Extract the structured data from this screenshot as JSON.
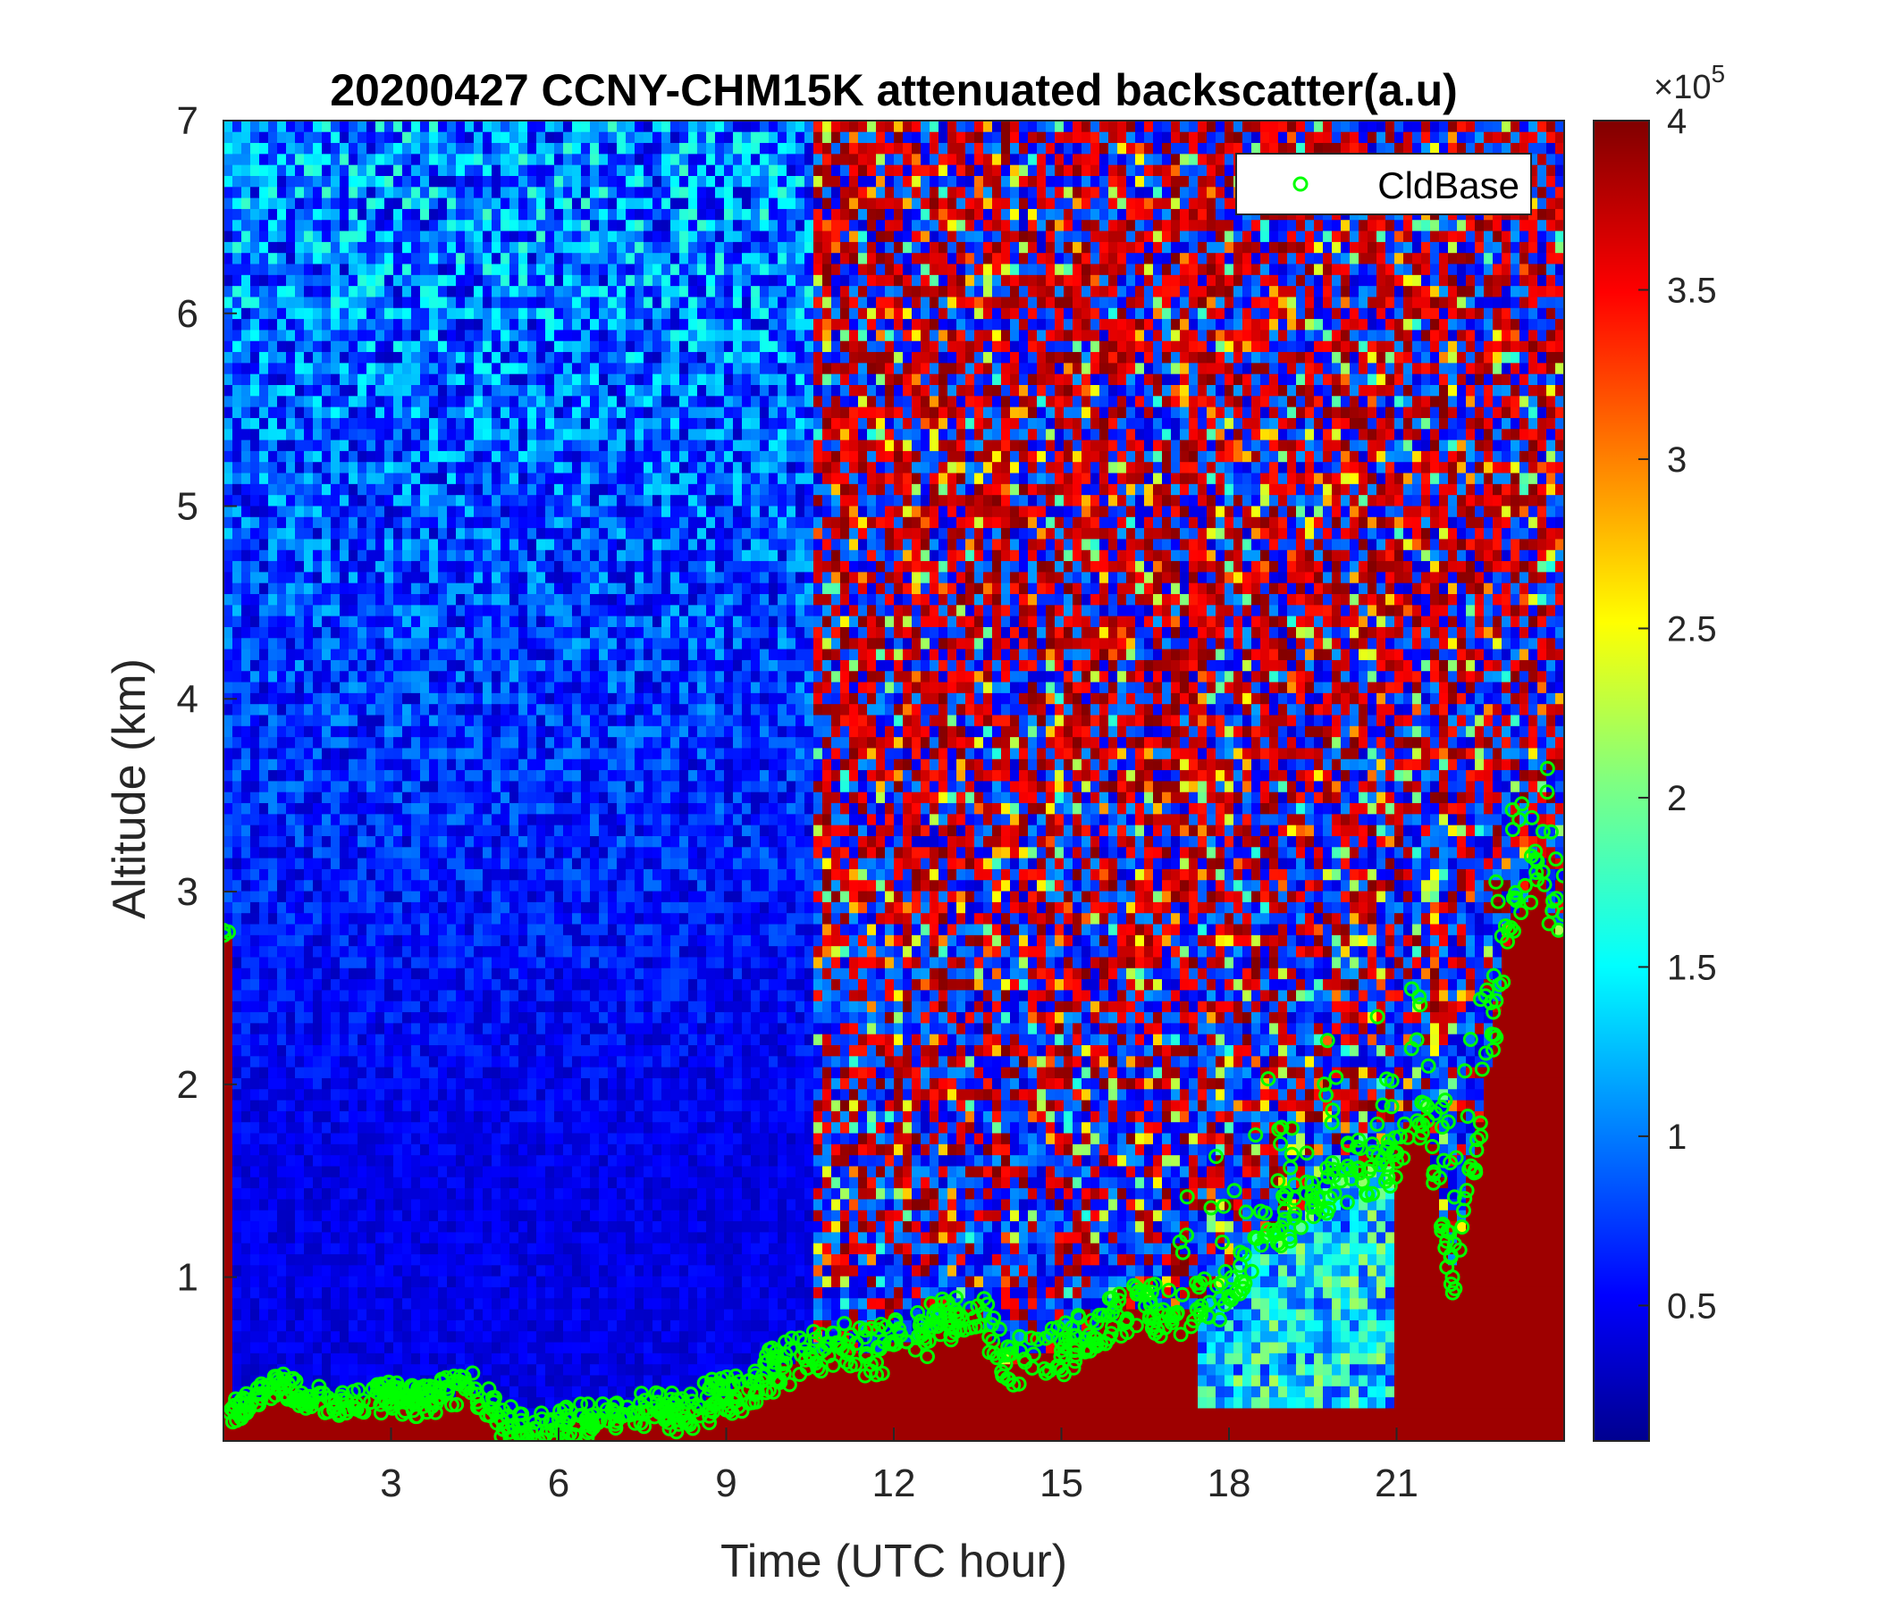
{
  "chart_data": {
    "type": "heatmap",
    "title": "20200427 CCNY-CHM15K attenuated backscatter(a.u)",
    "xlabel": "Time (UTC hour)",
    "ylabel": "Altitude (km)",
    "xlim": [
      0,
      24
    ],
    "ylim": [
      0.15,
      7
    ],
    "xticks": [
      3,
      6,
      9,
      12,
      15,
      18,
      21
    ],
    "yticks": [
      1,
      2,
      3,
      4,
      5,
      6,
      7
    ],
    "colormap": "jet",
    "colorbar": {
      "clim": [
        0.1,
        4
      ],
      "ticks": [
        0.5,
        1,
        1.5,
        2,
        2.5,
        3,
        3.5,
        4
      ],
      "tick_labels": [
        "0.5",
        "1",
        "1.5",
        "2",
        "2.5",
        "3",
        "3.5",
        "4"
      ],
      "multiplier_prefix": "×10",
      "multiplier_exp": "5"
    },
    "legend": {
      "label": "CldBase",
      "marker": "o",
      "color": "#00ff00",
      "position": "top-right"
    },
    "grid": false,
    "series": [
      {
        "name": "CldBase",
        "marker": "circle",
        "color": "#00ff00",
        "x": [
          0.1,
          0.5,
          1,
          1.5,
          2,
          2.5,
          3,
          3.5,
          4,
          4.5,
          5,
          5.5,
          6,
          6.5,
          7,
          7.5,
          8,
          8.5,
          9,
          9.5,
          10,
          10.5,
          11,
          11.5,
          12,
          12.5,
          13,
          13.5,
          14,
          14.5,
          15,
          15.5,
          16,
          16.5,
          17,
          17.5,
          18,
          18.5,
          19,
          19.5,
          20,
          20.5,
          21,
          21.5,
          22,
          22.5,
          23,
          23.5,
          23.9
        ],
        "y": [
          0.3,
          0.35,
          0.45,
          0.38,
          0.35,
          0.36,
          0.38,
          0.35,
          0.4,
          0.42,
          0.25,
          0.2,
          0.22,
          0.25,
          0.28,
          0.3,
          0.3,
          0.33,
          0.38,
          0.45,
          0.55,
          0.6,
          0.65,
          0.6,
          0.65,
          0.7,
          0.8,
          0.85,
          0.55,
          0.6,
          0.62,
          0.7,
          0.8,
          0.85,
          0.8,
          0.85,
          0.9,
          1.2,
          1.3,
          1.4,
          1.5,
          1.55,
          1.6,
          1.9,
          1.0,
          1.8,
          2.8,
          3.1,
          2.8
        ]
      }
    ]
  }
}
